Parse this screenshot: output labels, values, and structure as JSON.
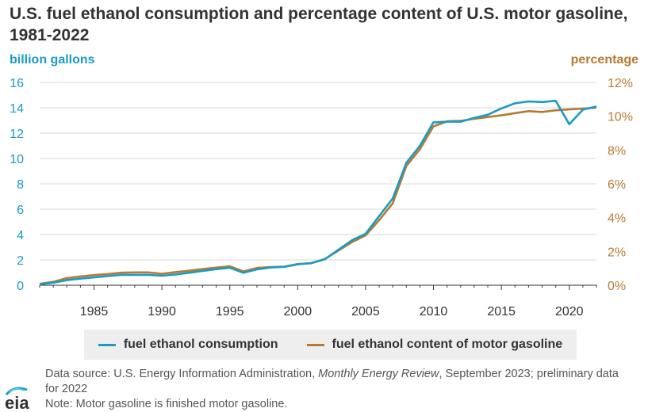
{
  "title": "U.S. fuel ethanol consumption and percentage content of U.S. motor gasoline, 1981-2022",
  "colors": {
    "consumption": "#1b9bc4",
    "content": "#b87a33",
    "text": "#333333",
    "grid": "#d9d9d9"
  },
  "chart_data": {
    "type": "line",
    "title": "U.S. fuel ethanol consumption and percentage content of U.S. motor gasoline, 1981-2022",
    "ylabel_left": "billion gallons",
    "ylabel_right": "percentage",
    "x_ticks": [
      "1985",
      "1990",
      "1995",
      "2000",
      "2005",
      "2010",
      "2015",
      "2020"
    ],
    "y_left_ticks": [
      "0",
      "2",
      "4",
      "6",
      "8",
      "10",
      "12",
      "14",
      "16"
    ],
    "y_right_ticks": [
      "0%",
      "2%",
      "4%",
      "6%",
      "8%",
      "10%",
      "12%"
    ],
    "xlim": [
      1981,
      2022
    ],
    "ylim_left": [
      0,
      16
    ],
    "ylim_right": [
      0,
      12
    ],
    "grid": "horizontal",
    "legend": "bottom",
    "series": [
      {
        "name": "fuel ethanol consumption",
        "axis": "left",
        "x": [
          1981,
          1982,
          1983,
          1984,
          1985,
          1986,
          1987,
          1988,
          1989,
          1990,
          1991,
          1992,
          1993,
          1994,
          1995,
          1996,
          1997,
          1998,
          1999,
          2000,
          2001,
          2002,
          2003,
          2004,
          2005,
          2006,
          2007,
          2008,
          2009,
          2010,
          2011,
          2012,
          2013,
          2014,
          2015,
          2016,
          2017,
          2018,
          2019,
          2020,
          2021,
          2022
        ],
        "values": [
          0.08,
          0.2,
          0.4,
          0.52,
          0.62,
          0.72,
          0.82,
          0.82,
          0.82,
          0.75,
          0.85,
          0.98,
          1.13,
          1.27,
          1.38,
          0.98,
          1.25,
          1.4,
          1.45,
          1.65,
          1.75,
          2.05,
          2.8,
          3.55,
          4.05,
          5.45,
          6.85,
          9.65,
          11.0,
          12.85,
          12.9,
          12.9,
          13.2,
          13.45,
          13.95,
          14.35,
          14.5,
          14.45,
          14.55,
          12.7,
          13.85,
          14.1
        ]
      },
      {
        "name": "fuel ethanol content of motor gasoline",
        "axis": "right",
        "x": [
          1981,
          1982,
          1983,
          1984,
          1985,
          1986,
          1987,
          1988,
          1989,
          1990,
          1991,
          1992,
          1993,
          1994,
          1995,
          1996,
          1997,
          1998,
          1999,
          2000,
          2001,
          2002,
          2003,
          2004,
          2005,
          2006,
          2007,
          2008,
          2009,
          2010,
          2011,
          2012,
          2013,
          2014,
          2015,
          2016,
          2017,
          2018,
          2019,
          2020,
          2021,
          2022
        ],
        "values": [
          0.08,
          0.2,
          0.42,
          0.52,
          0.6,
          0.66,
          0.74,
          0.76,
          0.76,
          0.68,
          0.78,
          0.86,
          0.96,
          1.04,
          1.12,
          0.82,
          1.02,
          1.08,
          1.1,
          1.25,
          1.3,
          1.55,
          2.05,
          2.55,
          2.95,
          3.85,
          4.85,
          7.05,
          8.05,
          9.4,
          9.7,
          9.72,
          9.85,
          9.95,
          10.05,
          10.18,
          10.3,
          10.25,
          10.35,
          10.4,
          10.45,
          10.5
        ]
      }
    ]
  },
  "legend": [
    {
      "label": "fuel ethanol consumption"
    },
    {
      "label": "fuel ethanol content of motor gasoline"
    }
  ],
  "source": {
    "prefix": "Data source: U.S. Energy Information Administration, ",
    "publication": "Monthly Energy Review",
    "suffix": ", September 2023; preliminary data for 2022"
  },
  "note": "Note: Motor gasoline is finished motor gasoline.",
  "logo_text": "eia"
}
